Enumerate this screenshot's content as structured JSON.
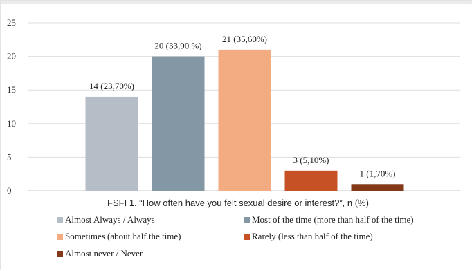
{
  "chart_data": {
    "type": "bar",
    "categories": [
      "Almost Always / Always",
      "Most of the time (more than half of the time)",
      "Sometimes (about half the time)",
      "Rarely (less than half of the time)",
      "Almost never / Never"
    ],
    "values": [
      14,
      20,
      21,
      3,
      1
    ],
    "data_labels": [
      "14 (23,70%)",
      "20 (33,90 %)",
      "21 (35,60%)",
      "3 (5,10%)",
      "1 (1,70%)"
    ],
    "colors": [
      "#b5bec6",
      "#8497a5",
      "#f3ab82",
      "#c55124",
      "#843a18"
    ],
    "xlabel": "FSFI 1. “How often have you felt sexual desire or interest?”, n (%)",
    "ylabel": "",
    "ylim": [
      0,
      25
    ],
    "yticks": [
      "0",
      "5",
      "10",
      "15",
      "20",
      "25"
    ],
    "grid": true,
    "legend_position": "bottom"
  }
}
